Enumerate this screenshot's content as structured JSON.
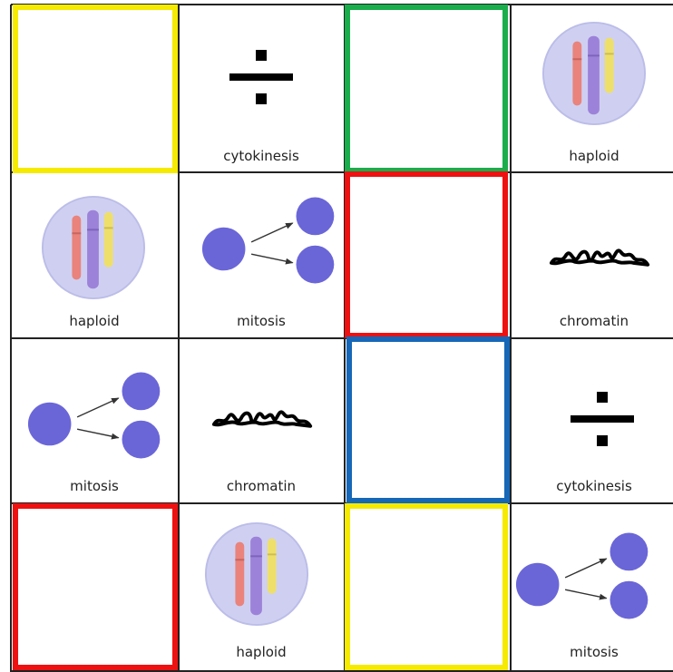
{
  "grid": {
    "rows": [
      [
        null,
        "cytokinesis",
        null,
        "haploid"
      ],
      [
        "haploid",
        "mitosis",
        null,
        "chromatin"
      ],
      [
        "mitosis",
        "chromatin",
        null,
        "cytokinesis"
      ],
      [
        null,
        "haploid",
        null,
        "mitosis"
      ]
    ]
  }
}
